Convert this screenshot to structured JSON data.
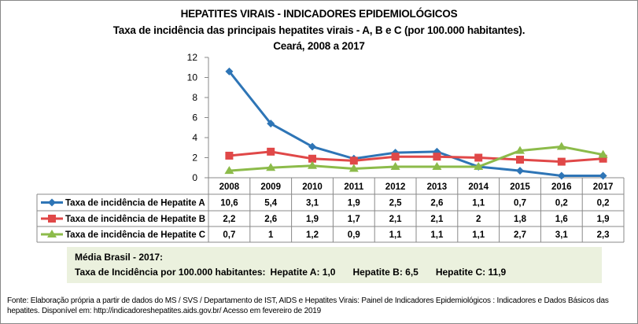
{
  "chart_data": {
    "type": "line",
    "title": "HEPATITES VIRAIS - INDICADORES EPIDEMIOLÓGICOS",
    "subtitle": "Taxa de incidência das principais hepatites virais - A, B e C (por 100.000 habitantes).",
    "subtitle2": "Ceará, 2008 a 2017",
    "categories": [
      "2008",
      "2009",
      "2010",
      "2011",
      "2012",
      "2013",
      "2014",
      "2015",
      "2016",
      "2017"
    ],
    "ylim": [
      0,
      12
    ],
    "yticks": [
      0,
      2,
      4,
      6,
      8,
      10,
      12
    ],
    "grid": false,
    "legend": "data-table",
    "series": [
      {
        "name": "Taxa de incidência de Hepatite A",
        "color": "#2e75b6",
        "marker": "diamond",
        "values": [
          10.6,
          5.4,
          3.1,
          1.9,
          2.5,
          2.6,
          1.1,
          0.7,
          0.2,
          0.2
        ],
        "labels": [
          "10,6",
          "5,4",
          "3,1",
          "1,9",
          "2,5",
          "2,6",
          "1,1",
          "0,7",
          "0,2",
          "0,2"
        ]
      },
      {
        "name": "Taxa de incidência de Hepatite B",
        "color": "#e04848",
        "marker": "square",
        "values": [
          2.2,
          2.6,
          1.9,
          1.7,
          2.1,
          2.1,
          2.0,
          1.8,
          1.6,
          1.9
        ],
        "labels": [
          "2,2",
          "2,6",
          "1,9",
          "1,7",
          "2,1",
          "2,1",
          "2",
          "1,8",
          "1,6",
          "1,9"
        ]
      },
      {
        "name": "Taxa de incidência de Hepatite C",
        "color": "#8cbb4a",
        "marker": "triangle",
        "values": [
          0.7,
          1.0,
          1.2,
          0.9,
          1.1,
          1.1,
          1.1,
          2.7,
          3.1,
          2.3
        ],
        "labels": [
          "0,7",
          "1",
          "1,2",
          "0,9",
          "1,1",
          "1,1",
          "1,1",
          "2,7",
          "3,1",
          "2,3"
        ]
      }
    ]
  },
  "note": {
    "line1": "Média Brasil  - 2017:",
    "prefix": "Taxa  de Incidência  por 100.000 habitantes:",
    "a": "Hepatite A: 1,0",
    "b": "Hepatite B: 6,5",
    "c": "Hepatite C: 11,9"
  },
  "source": {
    "line1": "Fonte: Elaboração própria a partir de dados do MS / SVS / Departamento de IST, AIDS e Hepatites Virais:  Painel de Indicadores Epidemiológicos : Indicadores e Dados Básicos das",
    "line2": "hepatites.  Disponível em: http://indicadoreshepatites.aids.gov.br/      Acesso em fevereiro de 2019"
  }
}
